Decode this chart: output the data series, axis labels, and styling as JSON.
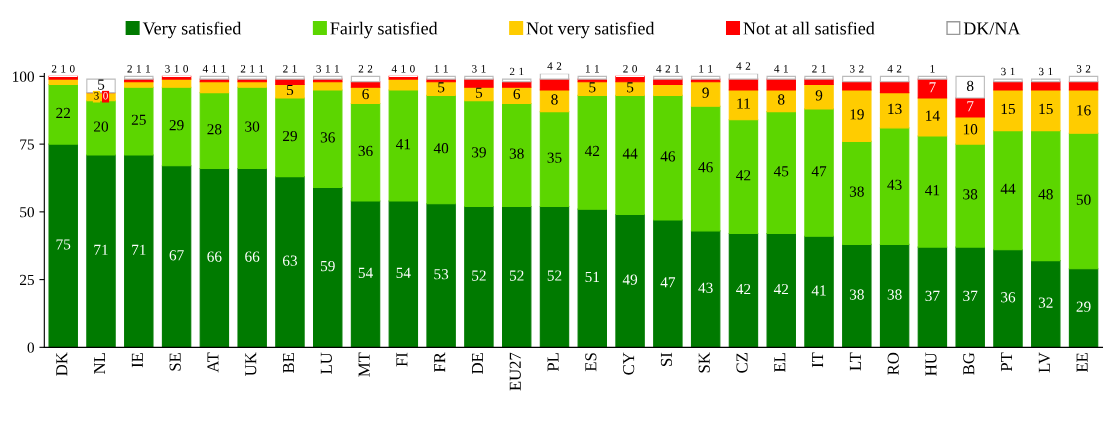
{
  "chart_data": {
    "type": "bar",
    "stacked": true,
    "data_labels": true,
    "legend": "top",
    "grid": false,
    "categories": [
      "DK",
      "NL",
      "IE",
      "SE",
      "AT",
      "UK",
      "BE",
      "LU",
      "MT",
      "FI",
      "FR",
      "DE",
      "EU27",
      "PL",
      "ES",
      "CY",
      "SI",
      "SK",
      "CZ",
      "EL",
      "IT",
      "LT",
      "RO",
      "HU",
      "BG",
      "PT",
      "LV",
      "EE"
    ],
    "ylim": [
      0,
      101
    ],
    "yticks": [
      0,
      25,
      50,
      75,
      100
    ],
    "series": [
      {
        "name": "Very satisfied",
        "color": "#007a00",
        "values": [
          75,
          71,
          71,
          67,
          66,
          66,
          63,
          59,
          54,
          54,
          53,
          52,
          52,
          52,
          51,
          49,
          47,
          43,
          42,
          42,
          41,
          38,
          38,
          37,
          37,
          36,
          32,
          29
        ]
      },
      {
        "name": "Fairly satisfied",
        "color": "#5cd600",
        "values": [
          22,
          20,
          25,
          29,
          28,
          30,
          29,
          36,
          36,
          41,
          40,
          39,
          38,
          35,
          42,
          44,
          46,
          46,
          42,
          45,
          47,
          38,
          43,
          41,
          38,
          44,
          48,
          50
        ]
      },
      {
        "name": "Not very satisfied",
        "color": "#ffcc00",
        "values": [
          2,
          3,
          2,
          3,
          4,
          2,
          5,
          3,
          6,
          4,
          5,
          5,
          6,
          8,
          5,
          5,
          4,
          9,
          11,
          8,
          9,
          19,
          13,
          14,
          10,
          15,
          15,
          16
        ]
      },
      {
        "name": "Not at all satisfied",
        "color": "#ff0000",
        "values": [
          1,
          0,
          1,
          1,
          1,
          1,
          2,
          1,
          2,
          1,
          1,
          3,
          2,
          4,
          1,
          2,
          2,
          1,
          4,
          4,
          2,
          3,
          4,
          7,
          7,
          3,
          3,
          3
        ]
      },
      {
        "name": "DK/NA",
        "color": "#ffffff",
        "values": [
          0,
          5,
          1,
          0,
          1,
          1,
          1,
          1,
          2,
          0,
          1,
          1,
          1,
          2,
          1,
          0,
          1,
          1,
          2,
          1,
          1,
          2,
          2,
          1,
          8,
          1,
          1,
          2
        ]
      }
    ]
  }
}
